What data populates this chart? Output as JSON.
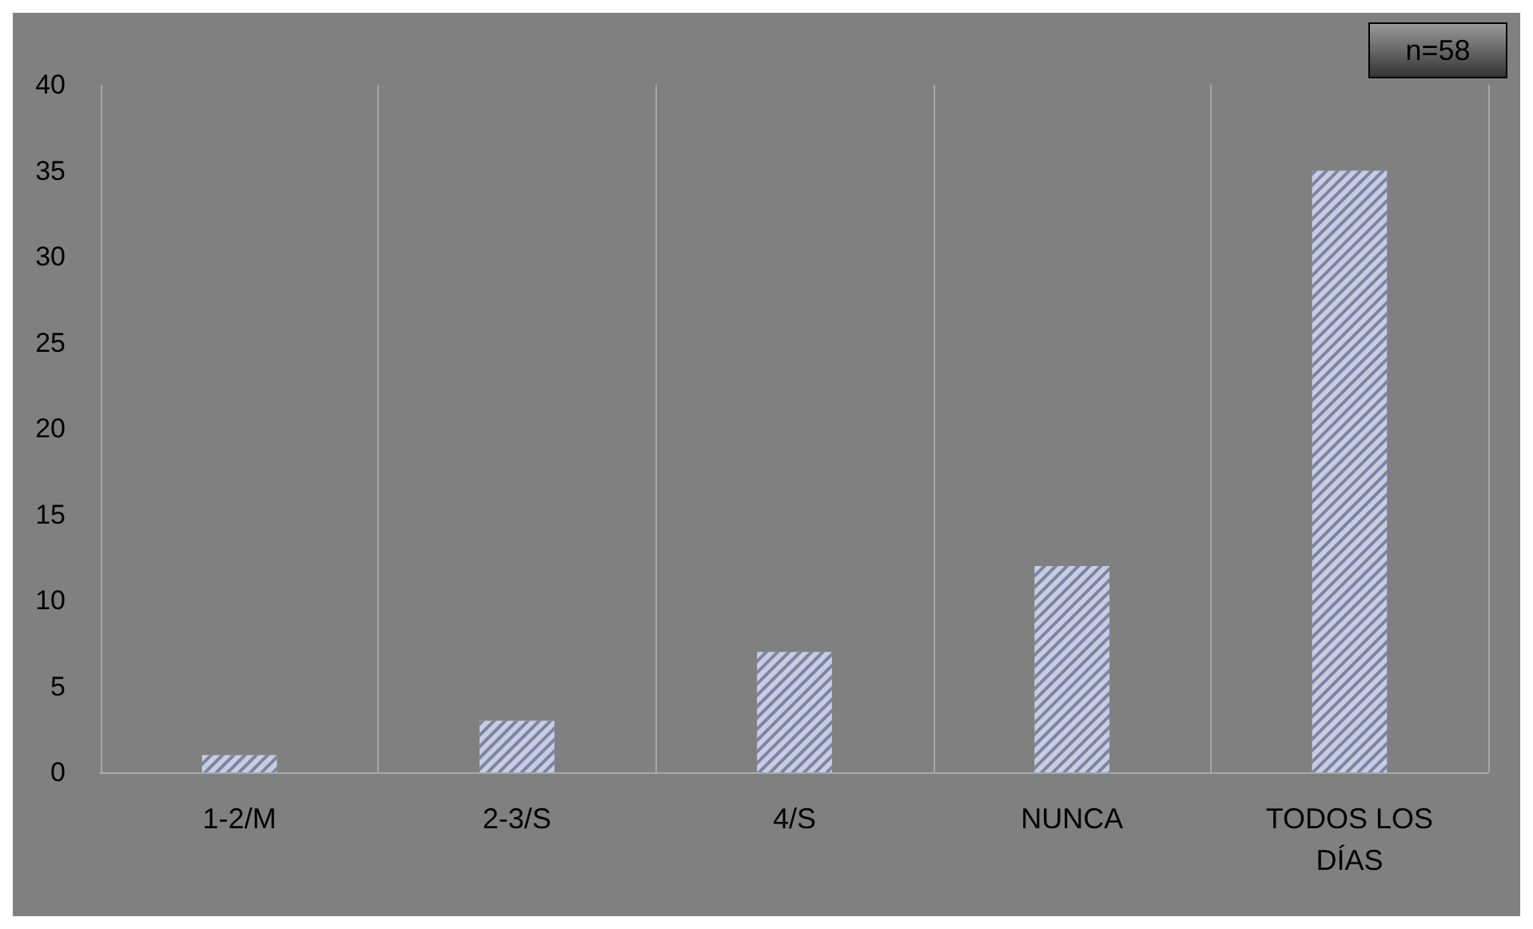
{
  "chart_data": {
    "type": "bar",
    "categories": [
      "1-2/M",
      "2-3/S",
      "4/S",
      "NUNCA",
      "TODOS LOS DÍAS"
    ],
    "values": [
      1,
      3,
      7,
      12,
      35
    ],
    "color": "#c9cde0",
    "ylim": [
      0,
      40
    ],
    "yticks": [
      0,
      5,
      10,
      15,
      20,
      25,
      30,
      35,
      40
    ],
    "grid": "x",
    "annotations": [
      "n=58"
    ]
  }
}
